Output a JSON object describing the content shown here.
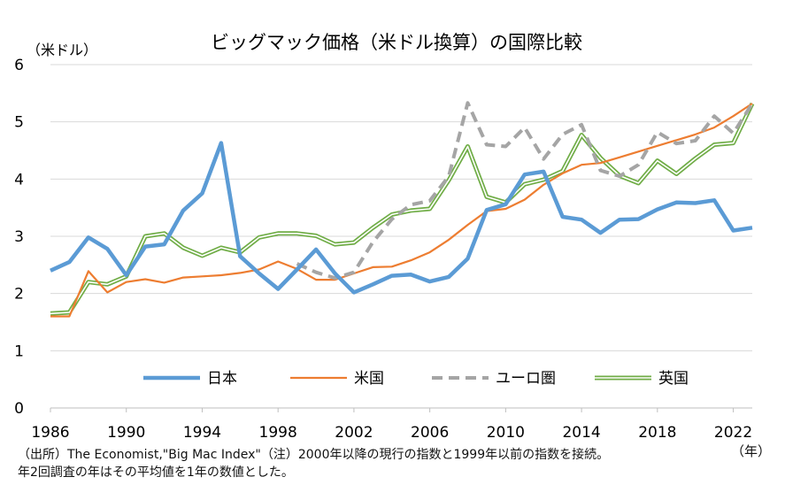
{
  "chart_data": {
    "type": "line",
    "title": "ビッグマック価格（米ドル換算）の国際比較",
    "ylabel": "（米ドル）",
    "xlabel_unit": "（年）",
    "ylim": [
      0,
      6
    ],
    "xlim": [
      1986,
      2023
    ],
    "y_ticks": [
      "0",
      "1",
      "2",
      "3",
      "4",
      "5",
      "6"
    ],
    "x_ticks": [
      "1986",
      "1990",
      "1994",
      "1998",
      "2002",
      "2006",
      "2010",
      "2014",
      "2018",
      "2022"
    ],
    "grid": true,
    "legend_position": "bottom-inside",
    "series": [
      {
        "name": "日本",
        "style": "solid-thick",
        "color": "#5b9bd5",
        "x": [
          1986,
          1987,
          1988,
          1989,
          1990,
          1991,
          1992,
          1993,
          1994,
          1995,
          1996,
          1997,
          1998,
          1999,
          2000,
          2001,
          2002,
          2003,
          2004,
          2005,
          2006,
          2007,
          2008,
          2009,
          2010,
          2011,
          2012,
          2013,
          2014,
          2015,
          2016,
          2017,
          2018,
          2019,
          2020,
          2021,
          2022,
          2023
        ],
        "values": [
          2.4,
          2.55,
          2.98,
          2.78,
          2.32,
          2.82,
          2.86,
          3.45,
          3.75,
          4.63,
          2.65,
          2.35,
          2.08,
          2.42,
          2.77,
          2.35,
          2.02,
          2.16,
          2.31,
          2.33,
          2.21,
          2.29,
          2.61,
          3.46,
          3.56,
          4.08,
          4.13,
          3.34,
          3.29,
          3.06,
          3.29,
          3.3,
          3.47,
          3.59,
          3.58,
          3.63,
          3.1,
          3.15
        ]
      },
      {
        "name": "米国",
        "style": "solid",
        "color": "#ed7d31",
        "x": [
          1986,
          1987,
          1988,
          1989,
          1990,
          1991,
          1992,
          1993,
          1994,
          1995,
          1996,
          1997,
          1998,
          1999,
          2000,
          2001,
          2002,
          2003,
          2004,
          2005,
          2006,
          2007,
          2008,
          2009,
          2010,
          2011,
          2012,
          2013,
          2014,
          2015,
          2016,
          2017,
          2018,
          2019,
          2020,
          2021,
          2022,
          2023
        ],
        "values": [
          1.6,
          1.6,
          2.39,
          2.02,
          2.2,
          2.25,
          2.19,
          2.28,
          2.3,
          2.32,
          2.36,
          2.42,
          2.56,
          2.43,
          2.24,
          2.24,
          2.35,
          2.46,
          2.47,
          2.58,
          2.72,
          2.94,
          3.2,
          3.44,
          3.48,
          3.64,
          3.9,
          4.1,
          4.25,
          4.28,
          4.38,
          4.48,
          4.58,
          4.68,
          4.78,
          4.9,
          5.1,
          5.32
        ]
      },
      {
        "name": "ユーロ圏",
        "style": "dashed",
        "color": "#a5a5a5",
        "x": [
          1999,
          2000,
          2001,
          2002,
          2003,
          2004,
          2005,
          2006,
          2007,
          2008,
          2009,
          2010,
          2011,
          2012,
          2013,
          2014,
          2015,
          2016,
          2017,
          2018,
          2019,
          2020,
          2021,
          2022,
          2023
        ],
        "values": [
          2.52,
          2.37,
          2.27,
          2.37,
          2.9,
          3.3,
          3.55,
          3.62,
          4.05,
          5.33,
          4.6,
          4.57,
          4.9,
          4.35,
          4.78,
          4.95,
          4.15,
          4.05,
          4.25,
          4.82,
          4.62,
          4.67,
          5.1,
          4.8,
          5.32
        ]
      },
      {
        "name": "英国",
        "style": "double",
        "color": "#70ad47",
        "x": [
          1986,
          1987,
          1988,
          1989,
          1990,
          1991,
          1992,
          1993,
          1994,
          1995,
          1996,
          1997,
          1998,
          1999,
          2000,
          2001,
          2002,
          2003,
          2004,
          2005,
          2006,
          2007,
          2008,
          2009,
          2010,
          2011,
          2012,
          2013,
          2014,
          2015,
          2016,
          2017,
          2018,
          2019,
          2020,
          2021,
          2022,
          2023
        ],
        "values": [
          1.65,
          1.67,
          2.2,
          2.16,
          2.3,
          3.0,
          3.05,
          2.8,
          2.66,
          2.8,
          2.72,
          2.98,
          3.05,
          3.05,
          3.01,
          2.86,
          2.89,
          3.15,
          3.38,
          3.45,
          3.48,
          3.98,
          4.57,
          3.69,
          3.59,
          3.91,
          3.99,
          4.14,
          4.77,
          4.37,
          4.06,
          3.93,
          4.32,
          4.09,
          4.36,
          4.6,
          4.63,
          5.32
        ]
      }
    ]
  },
  "footnote": {
    "line1": "（出所）The Economist,\"Big Mac Index\"（注）2000年以降の現行の指数と1999年以前の指数を接続。",
    "line2": "年2回調査の年はその平均値を1年の数値とした。"
  }
}
